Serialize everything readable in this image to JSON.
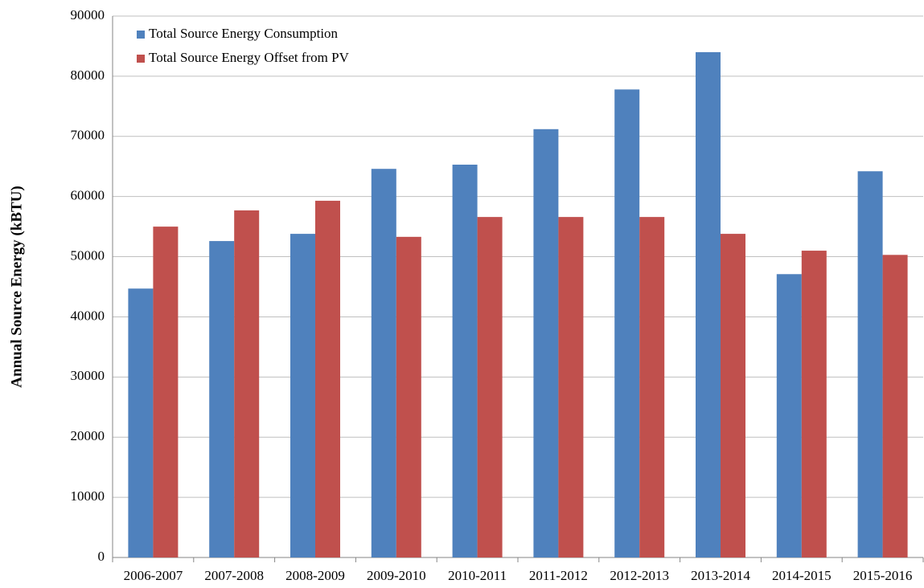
{
  "chart_data": {
    "type": "bar",
    "y_label": "Annual Source Energy (kBTU)",
    "categories": [
      "2006-2007",
      "2007-2008",
      "2008-2009",
      "2009-2010",
      "2010-2011",
      "2011-2012",
      "2012-2013",
      "2013-2014",
      "2014-2015",
      "2015-2016"
    ],
    "series": [
      {
        "name": "Total Source Energy Consumption",
        "color": "#4f81bd",
        "values": [
          44700,
          52600,
          53800,
          64600,
          65300,
          71200,
          77800,
          84000,
          47100,
          64200
        ]
      },
      {
        "name": "Total Source Energy Offset from PV",
        "color": "#c0504d",
        "values": [
          55000,
          57700,
          59300,
          53300,
          56600,
          56600,
          56600,
          53800,
          51000,
          50300
        ]
      }
    ],
    "ylim": [
      0,
      90000
    ],
    "yticks": [
      0,
      10000,
      20000,
      30000,
      40000,
      50000,
      60000,
      70000,
      80000,
      90000
    ],
    "grid": true,
    "legend": "top-left"
  }
}
